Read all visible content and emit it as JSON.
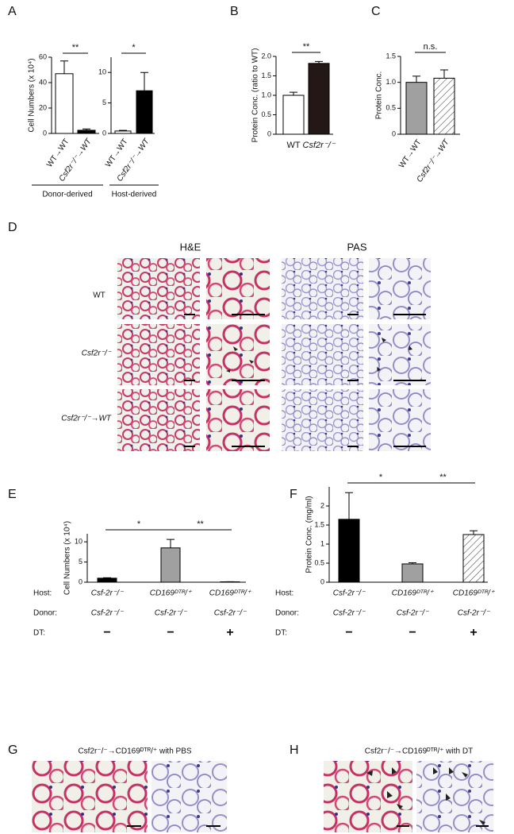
{
  "panel_labels": [
    "A",
    "B",
    "C",
    "D",
    "E",
    "F",
    "G",
    "H"
  ],
  "chart_data": [
    {
      "type": "bar",
      "ylabel": "Cell Numbers (x 10⁴)",
      "categories": [
        "WT→WT",
        "Csf2r⁻/⁻→WT"
      ],
      "values": [
        47,
        2.5
      ],
      "errors": [
        10,
        1
      ],
      "colors": [
        "#ffffff",
        "#000000"
      ],
      "hatched": [
        false,
        false
      ],
      "ylim": [
        0,
        60
      ],
      "yticks": [
        0,
        20,
        40,
        60
      ],
      "annotations": [
        "**"
      ],
      "group_label": "Donor-derived"
    },
    {
      "type": "bar",
      "categories": [
        "WT→WT",
        "Csf2r⁻/⁻→WT"
      ],
      "values": [
        0.4,
        7
      ],
      "errors": [
        0.1,
        3
      ],
      "colors": [
        "#ffffff",
        "#000000"
      ],
      "hatched": [
        false,
        false
      ],
      "ylim": [
        0,
        12.5
      ],
      "yticks": [
        0,
        5,
        10
      ],
      "annotations": [
        "*"
      ],
      "group_label": "Host-derived"
    },
    {
      "type": "bar",
      "ylabel": "Protein Conc. (ratio to WT)",
      "categories": [
        "WT",
        "Csf2r⁻/⁻"
      ],
      "values": [
        1.0,
        1.82
      ],
      "errors": [
        0.08,
        0.05
      ],
      "colors": [
        "#ffffff",
        "#231815"
      ],
      "hatched": [
        false,
        false
      ],
      "ylim": [
        0,
        2
      ],
      "yticks": [
        0,
        0.5,
        {
          "value": 1,
          "label": "1.0"
        },
        1.5,
        {
          "value": 2,
          "label": "2.0"
        }
      ],
      "annotations": [
        "**"
      ]
    },
    {
      "type": "bar",
      "ylabel": "Protein Conc.",
      "categories": [
        "WT→WT",
        "Csf2r⁻/⁻→WT"
      ],
      "values": [
        1.0,
        1.08
      ],
      "errors": [
        0.12,
        0.16
      ],
      "colors": [
        "#a0a0a0",
        "#ffffff"
      ],
      "hatched": [
        false,
        true
      ],
      "ylim": [
        0,
        1.5
      ],
      "yticks": [
        0,
        0.5,
        {
          "value": 1,
          "label": "1.0"
        },
        1.5
      ],
      "annotations": [
        "n.s."
      ]
    },
    {
      "type": "bar",
      "ylabel": "Cell Numbers (x 10⁴)",
      "values": [
        1.0,
        8.5,
        0.1
      ],
      "errors": [
        0.1,
        2.1,
        0.02
      ],
      "colors": [
        "#000000",
        "#a0a0a0",
        "#ffffff"
      ],
      "hatched": [
        false,
        false,
        false
      ],
      "ylim": [
        0,
        12
      ],
      "yticks": [
        0,
        5,
        10
      ],
      "annotations": [
        "*",
        "**"
      ],
      "rows": [
        {
          "label": "Host:",
          "values": [
            "Csf-2r⁻/⁻",
            "CD169ᴰᵀᴿ/⁺",
            "CD169ᴰᵀᴿ/⁺"
          ]
        },
        {
          "label": "Donor:",
          "values": [
            "Csf-2r⁻/⁻",
            "Csf-2r⁻/⁻",
            "Csf-2r⁻/⁻"
          ]
        },
        {
          "label": "DT:",
          "values": [
            "−",
            "−",
            "+"
          ]
        }
      ]
    },
    {
      "type": "bar",
      "ylabel": "Protein Conc. (mg/ml)",
      "values": [
        1.65,
        0.48,
        1.25
      ],
      "errors": [
        0.7,
        0.03,
        0.1
      ],
      "colors": [
        "#000000",
        "#a0a0a0",
        "#ffffff"
      ],
      "hatched": [
        false,
        false,
        true
      ],
      "ylim": [
        0,
        2.5
      ],
      "yticks": [
        0,
        0.5,
        1,
        1.5,
        2
      ],
      "annotations": [
        "*",
        "**"
      ],
      "rows": [
        {
          "label": "Host:",
          "values": [
            "Csf-2r⁻/⁻",
            "CD169ᴰᵀᴿ/⁺",
            "CD169ᴰᵀᴿ/⁺"
          ]
        },
        {
          "label": "Donor:",
          "values": [
            "Csf-2r⁻/⁻",
            "Csf-2r⁻/⁻",
            "Csf-2r⁻/⁻"
          ]
        },
        {
          "label": "DT:",
          "values": [
            "−",
            "−",
            "+"
          ]
        }
      ]
    }
  ],
  "histology_D": {
    "columns": [
      "H&E",
      "PAS"
    ],
    "rows": [
      "WT",
      "Csf2r⁻/⁻",
      "Csf2r⁻/⁻→WT"
    ]
  },
  "histology_G": {
    "title": "Csf2r⁻/⁻→CD169ᴰᵀᴿ/⁺  with PBS"
  },
  "histology_H": {
    "title": "Csf2r⁻/⁻→CD169ᴰᵀᴿ/⁺  with DT"
  }
}
